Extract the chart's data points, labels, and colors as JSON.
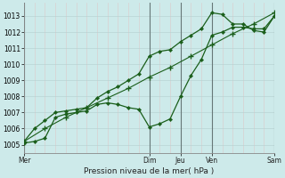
{
  "bg_color": "#cdeaea",
  "grid_color_major": "#b8d4d4",
  "grid_color_minor": "#dcc8c8",
  "line_color": "#1a5e1a",
  "xlabel": "Pression niveau de la mer( hPa )",
  "ylim": [
    1004.5,
    1013.8
  ],
  "xlim": [
    0,
    96
  ],
  "yticks": [
    1005,
    1006,
    1007,
    1008,
    1009,
    1010,
    1011,
    1012,
    1013
  ],
  "xtick_pos": [
    0,
    48,
    60,
    72,
    96
  ],
  "xtick_labels": [
    "Mer",
    "Dim",
    "Jeu",
    "Ven",
    "Sam"
  ],
  "vlines": [
    0,
    48,
    60,
    72,
    96
  ],
  "vline_color": "#667777",
  "series1_x": [
    0,
    4,
    8,
    12,
    16,
    20,
    24,
    28,
    32,
    36,
    40,
    44,
    48,
    52,
    56,
    60,
    64,
    68,
    72,
    76,
    80,
    84,
    88,
    92,
    96
  ],
  "series1_y": [
    1005.1,
    1005.2,
    1005.4,
    1006.7,
    1006.9,
    1007.0,
    1007.1,
    1007.5,
    1007.6,
    1007.5,
    1007.3,
    1007.2,
    1006.1,
    1006.3,
    1006.6,
    1008.0,
    1009.3,
    1010.3,
    1011.8,
    1012.0,
    1012.3,
    1012.3,
    1012.2,
    1012.2,
    1013.0
  ],
  "series2_x": [
    0,
    4,
    8,
    12,
    16,
    20,
    24,
    28,
    32,
    36,
    40,
    44,
    48,
    52,
    56,
    60,
    64,
    68,
    72,
    76,
    80,
    84,
    88,
    92,
    96
  ],
  "series2_y": [
    1005.2,
    1006.0,
    1006.5,
    1007.0,
    1007.1,
    1007.2,
    1007.3,
    1007.9,
    1008.3,
    1008.6,
    1009.0,
    1009.4,
    1010.5,
    1010.8,
    1010.9,
    1011.4,
    1011.8,
    1012.2,
    1013.2,
    1013.1,
    1012.5,
    1012.5,
    1012.1,
    1012.0,
    1013.0
  ],
  "series3_x": [
    0,
    8,
    16,
    24,
    32,
    40,
    48,
    56,
    64,
    72,
    80,
    88,
    96
  ],
  "series3_y": [
    1005.2,
    1006.0,
    1006.7,
    1007.3,
    1007.9,
    1008.5,
    1009.2,
    1009.8,
    1010.5,
    1011.2,
    1011.9,
    1012.5,
    1013.2
  ]
}
